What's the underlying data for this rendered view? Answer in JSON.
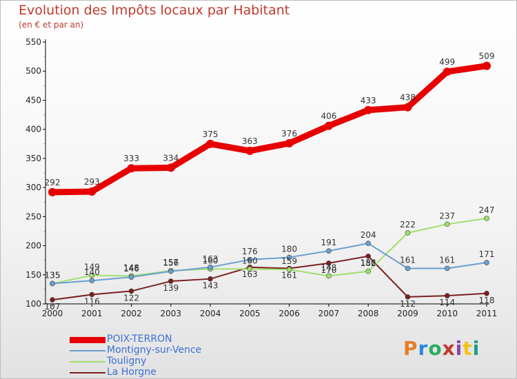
{
  "title": "Evolution des Impôts locaux par Habitant",
  "subtitle": "(en € et par an)",
  "logo": {
    "text": "Proxiti",
    "colors": [
      "#e67e22",
      "#2e86de",
      "#27ae60",
      "#c0392b",
      "#8e44ad",
      "#f1c40f",
      "#16a085"
    ]
  },
  "chart_data": {
    "type": "line",
    "x": [
      "2000",
      "2001",
      "2002",
      "2003",
      "2004",
      "2005",
      "2006",
      "2007",
      "2008",
      "2009",
      "2010",
      "2011"
    ],
    "ylim": [
      100,
      550
    ],
    "yticks": [
      "100",
      "150",
      "200",
      "250",
      "300",
      "350",
      "400",
      "450",
      "500",
      "550"
    ],
    "grid": false,
    "legend_position": "bottom-left",
    "series": [
      {
        "name": "POIX-TERRON",
        "color": "#e60000",
        "values": [
          292,
          293,
          333,
          334,
          375,
          363,
          376,
          406,
          433,
          438,
          499,
          509
        ],
        "labels": [
          "292",
          "293",
          "333",
          "334",
          "375",
          "363",
          "376",
          "406",
          "433",
          "438",
          "499",
          "509"
        ]
      },
      {
        "name": "Montigny-sur-Vence",
        "color": "#6a9fcf",
        "values": [
          135,
          140,
          146,
          156,
          163,
          176,
          180,
          191,
          204,
          161,
          161,
          171
        ],
        "labels": [
          "135",
          "140",
          "146",
          "156",
          "163",
          "176",
          "180",
          "191",
          "204",
          "161",
          "161",
          "171"
        ]
      },
      {
        "name": "Touligny",
        "color": "#9ee06b",
        "values": [
          135,
          149,
          148,
          157,
          160,
          160,
          159,
          148,
          156,
          222,
          237,
          247
        ],
        "labels": [
          "135",
          "149",
          "148",
          "157",
          "160",
          "160",
          "159",
          "148",
          "156",
          "222",
          "237",
          "247"
        ]
      },
      {
        "name": "La Horgne",
        "color": "#7a1f1f",
        "values": [
          107,
          116,
          122,
          139,
          143,
          163,
          161,
          170,
          182,
          112,
          114,
          118
        ],
        "labels": [
          "107",
          "116",
          "122",
          "139",
          "143",
          "163",
          "161",
          "170",
          "182",
          "112",
          "114",
          "118"
        ]
      }
    ]
  }
}
